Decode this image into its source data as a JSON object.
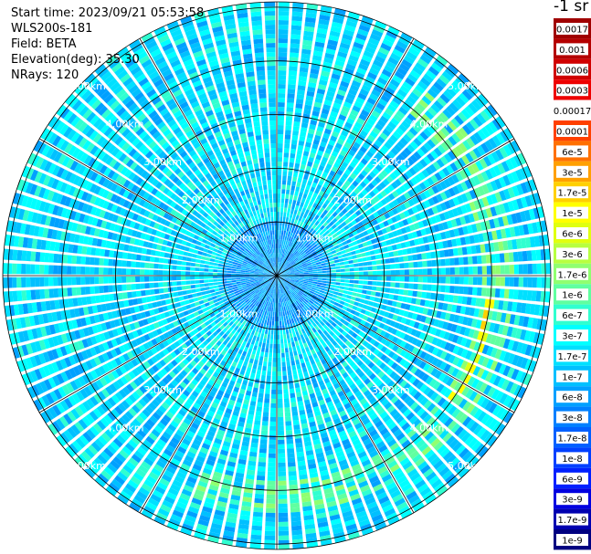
{
  "header": {
    "start_time": "Start time: 2023/09/21 05:53:58",
    "instrument": "WLS200s-181",
    "field": "Field: BETA",
    "elevation": "Elevation(deg): 35.30",
    "nrays": "NRays: 120"
  },
  "colorbar": {
    "unit_label": "-1 sr",
    "bins": [
      {
        "label": "0.0017",
        "color": "#a00000"
      },
      {
        "label": "0.001",
        "color": "#b40000"
      },
      {
        "label": "0.0006",
        "color": "#d00000"
      },
      {
        "label": "0.0003",
        "color": "#ee0000"
      },
      {
        "label": "0.00017",
        "color": "#ffffff"
      },
      {
        "label": "0.0001",
        "color": "#ff4000"
      },
      {
        "label": "6e-5",
        "color": "#ff7000"
      },
      {
        "label": "3e-5",
        "color": "#ffa000"
      },
      {
        "label": "1.7e-5",
        "color": "#ffd000"
      },
      {
        "label": "1e-5",
        "color": "#ffff00"
      },
      {
        "label": "6e-6",
        "color": "#e0ff10"
      },
      {
        "label": "3e-6",
        "color": "#b8ff40"
      },
      {
        "label": "1.7e-6",
        "color": "#90ff70"
      },
      {
        "label": "1e-6",
        "color": "#60ffa0"
      },
      {
        "label": "6e-7",
        "color": "#30ffd0"
      },
      {
        "label": "3e-7",
        "color": "#00ffff"
      },
      {
        "label": "1.7e-7",
        "color": "#00e0ff"
      },
      {
        "label": "1e-7",
        "color": "#00c0ff"
      },
      {
        "label": "6e-8",
        "color": "#00a0ff"
      },
      {
        "label": "3e-8",
        "color": "#0080ff"
      },
      {
        "label": "1.7e-8",
        "color": "#0060ff"
      },
      {
        "label": "1e-8",
        "color": "#0040ff"
      },
      {
        "label": "6e-9",
        "color": "#0020ff"
      },
      {
        "label": "3e-9",
        "color": "#0000e0"
      },
      {
        "label": "1.7e-9",
        "color": "#0000b0"
      },
      {
        "label": "1e-9",
        "color": "#000080"
      }
    ]
  },
  "chart_data": {
    "type": "heatmap",
    "projection": "polar",
    "field": "BETA",
    "rays": 120,
    "range_rings": [
      "1.00km",
      "2.00km",
      "3.00km",
      "4.00km",
      "5.00km"
    ],
    "range_values_km": [
      1,
      2,
      3,
      4,
      5
    ],
    "spokes_deg": [
      0,
      30,
      60,
      90,
      120,
      150,
      180,
      210,
      240,
      270,
      300,
      330
    ],
    "max_range_km": 5.1,
    "background_level": "1.7e-7",
    "features": [
      {
        "description_level": "1e-6",
        "range_km": [
          3.8,
          4.4
        ],
        "azimuth_deg": [
          40,
          200
        ]
      },
      {
        "description_level": "1e-5",
        "range_km": [
          3.9,
          4.1
        ],
        "azimuth_deg": [
          95,
          130
        ]
      },
      {
        "description_level": "3e-8",
        "range_km": [
          0,
          5.1
        ],
        "azimuth_deg": [
          0,
          360
        ]
      }
    ]
  }
}
